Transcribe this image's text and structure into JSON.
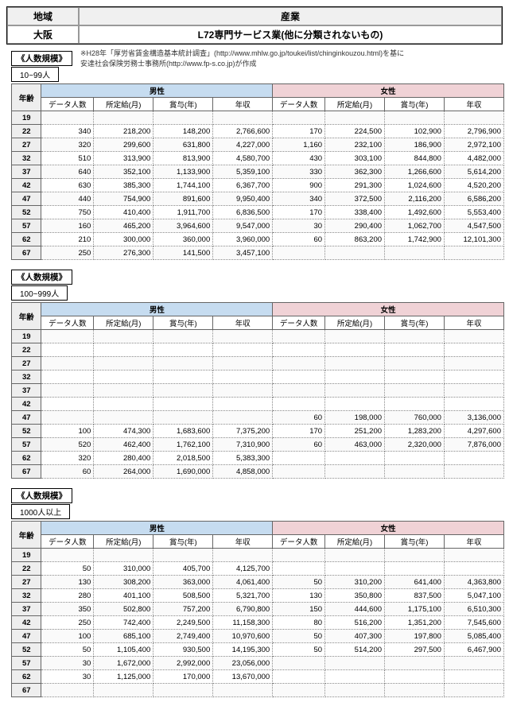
{
  "header": {
    "region_label": "地域",
    "industry_label": "産業",
    "region": "大阪",
    "industry": "L72専門サービス業(他に分類されないもの)"
  },
  "note1": "※H28年「厚労省賃金構造基本統計調査」(http://www.mhlw.go.jp/toukei/list/chinginkouzou.html)を基に",
  "note2": "安達社会保険労務士事務所(http://www.fp-s.co.jp)が作成",
  "scale_label": "《人数規模》",
  "ages": [
    "19",
    "22",
    "27",
    "32",
    "37",
    "42",
    "47",
    "52",
    "57",
    "62",
    "67"
  ],
  "col_labels": {
    "age": "年齢",
    "male": "男性",
    "female": "女性",
    "n": "データ人数",
    "m": "所定給(月)",
    "b": "賞与(年)",
    "y": "年収"
  },
  "tables": [
    {
      "scale": "10~99人",
      "rows": [
        {
          "age": "19"
        },
        {
          "age": "22",
          "mn": "340",
          "mm": "218,200",
          "mb": "148,200",
          "my": "2,766,600",
          "fn": "170",
          "fm": "224,500",
          "fb": "102,900",
          "fy": "2,796,900"
        },
        {
          "age": "27",
          "mn": "320",
          "mm": "299,600",
          "mb": "631,800",
          "my": "4,227,000",
          "fn": "1,160",
          "fm": "232,100",
          "fb": "186,900",
          "fy": "2,972,100"
        },
        {
          "age": "32",
          "mn": "510",
          "mm": "313,900",
          "mb": "813,900",
          "my": "4,580,700",
          "fn": "430",
          "fm": "303,100",
          "fb": "844,800",
          "fy": "4,482,000"
        },
        {
          "age": "37",
          "mn": "640",
          "mm": "352,100",
          "mb": "1,133,900",
          "my": "5,359,100",
          "fn": "330",
          "fm": "362,300",
          "fb": "1,266,600",
          "fy": "5,614,200"
        },
        {
          "age": "42",
          "mn": "630",
          "mm": "385,300",
          "mb": "1,744,100",
          "my": "6,367,700",
          "fn": "900",
          "fm": "291,300",
          "fb": "1,024,600",
          "fy": "4,520,200"
        },
        {
          "age": "47",
          "mn": "440",
          "mm": "754,900",
          "mb": "891,600",
          "my": "9,950,400",
          "fn": "340",
          "fm": "372,500",
          "fb": "2,116,200",
          "fy": "6,586,200"
        },
        {
          "age": "52",
          "mn": "750",
          "mm": "410,400",
          "mb": "1,911,700",
          "my": "6,836,500",
          "fn": "170",
          "fm": "338,400",
          "fb": "1,492,600",
          "fy": "5,553,400"
        },
        {
          "age": "57",
          "mn": "160",
          "mm": "465,200",
          "mb": "3,964,600",
          "my": "9,547,000",
          "fn": "30",
          "fm": "290,400",
          "fb": "1,062,700",
          "fy": "4,547,500"
        },
        {
          "age": "62",
          "mn": "210",
          "mm": "300,000",
          "mb": "360,000",
          "my": "3,960,000",
          "fn": "60",
          "fm": "863,200",
          "fb": "1,742,900",
          "fy": "12,101,300"
        },
        {
          "age": "67",
          "mn": "250",
          "mm": "276,300",
          "mb": "141,500",
          "my": "3,457,100"
        }
      ]
    },
    {
      "scale": "100~999人",
      "rows": [
        {
          "age": "19"
        },
        {
          "age": "22"
        },
        {
          "age": "27"
        },
        {
          "age": "32"
        },
        {
          "age": "37"
        },
        {
          "age": "42"
        },
        {
          "age": "47",
          "fn": "60",
          "fm": "198,000",
          "fb": "760,000",
          "fy": "3,136,000"
        },
        {
          "age": "52",
          "mn": "100",
          "mm": "474,300",
          "mb": "1,683,600",
          "my": "7,375,200",
          "fn": "170",
          "fm": "251,200",
          "fb": "1,283,200",
          "fy": "4,297,600"
        },
        {
          "age": "57",
          "mn": "520",
          "mm": "462,400",
          "mb": "1,762,100",
          "my": "7,310,900",
          "fn": "60",
          "fm": "463,000",
          "fb": "2,320,000",
          "fy": "7,876,000"
        },
        {
          "age": "62",
          "mn": "320",
          "mm": "280,400",
          "mb": "2,018,500",
          "my": "5,383,300"
        },
        {
          "age": "67",
          "mn": "60",
          "mm": "264,000",
          "mb": "1,690,000",
          "my": "4,858,000"
        }
      ]
    },
    {
      "scale": "1000人以上",
      "rows": [
        {
          "age": "19"
        },
        {
          "age": "22",
          "mn": "50",
          "mm": "310,000",
          "mb": "405,700",
          "my": "4,125,700"
        },
        {
          "age": "27",
          "mn": "130",
          "mm": "308,200",
          "mb": "363,000",
          "my": "4,061,400",
          "fn": "50",
          "fm": "310,200",
          "fb": "641,400",
          "fy": "4,363,800"
        },
        {
          "age": "32",
          "mn": "280",
          "mm": "401,100",
          "mb": "508,500",
          "my": "5,321,700",
          "fn": "130",
          "fm": "350,800",
          "fb": "837,500",
          "fy": "5,047,100"
        },
        {
          "age": "37",
          "mn": "350",
          "mm": "502,800",
          "mb": "757,200",
          "my": "6,790,800",
          "fn": "150",
          "fm": "444,600",
          "fb": "1,175,100",
          "fy": "6,510,300"
        },
        {
          "age": "42",
          "mn": "250",
          "mm": "742,400",
          "mb": "2,249,500",
          "my": "11,158,300",
          "fn": "80",
          "fm": "516,200",
          "fb": "1,351,200",
          "fy": "7,545,600"
        },
        {
          "age": "47",
          "mn": "100",
          "mm": "685,100",
          "mb": "2,749,400",
          "my": "10,970,600",
          "fn": "50",
          "fm": "407,300",
          "fb": "197,800",
          "fy": "5,085,400"
        },
        {
          "age": "52",
          "mn": "50",
          "mm": "1,105,400",
          "mb": "930,500",
          "my": "14,195,300",
          "fn": "50",
          "fm": "514,200",
          "fb": "297,500",
          "fy": "6,467,900"
        },
        {
          "age": "57",
          "mn": "30",
          "mm": "1,672,000",
          "mb": "2,992,000",
          "my": "23,056,000"
        },
        {
          "age": "62",
          "mn": "30",
          "mm": "1,125,000",
          "mb": "170,000",
          "my": "13,670,000"
        },
        {
          "age": "67"
        }
      ]
    }
  ]
}
